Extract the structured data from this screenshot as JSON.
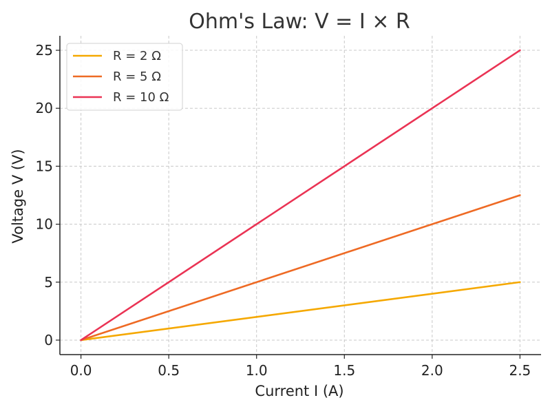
{
  "chart_data": {
    "type": "line",
    "title": "Ohm's Law: V = I × R",
    "xlabel": "Current I (A)",
    "ylabel": "Voltage V (V)",
    "xlim": [
      -0.12,
      2.62
    ],
    "ylim": [
      -1.25,
      26.25
    ],
    "x_ticks": [
      0.0,
      0.5,
      1.0,
      1.5,
      2.0,
      2.5
    ],
    "x_tick_labels": [
      "0.0",
      "0.5",
      "1.0",
      "1.5",
      "2.0",
      "2.5"
    ],
    "y_ticks": [
      0,
      5,
      10,
      15,
      20,
      25
    ],
    "y_tick_labels": [
      "0",
      "5",
      "10",
      "15",
      "20",
      "25"
    ],
    "grid": true,
    "legend_position": "top-left",
    "x": [
      0.0,
      2.5
    ],
    "series": [
      {
        "name": "R = 2 Ω",
        "color": "#f5a800",
        "values": [
          0,
          5
        ]
      },
      {
        "name": "R = 5 Ω",
        "color": "#ee6a24",
        "values": [
          0,
          12.5
        ]
      },
      {
        "name": "R = 10 Ω",
        "color": "#ea3354",
        "values": [
          0,
          25
        ]
      }
    ]
  }
}
